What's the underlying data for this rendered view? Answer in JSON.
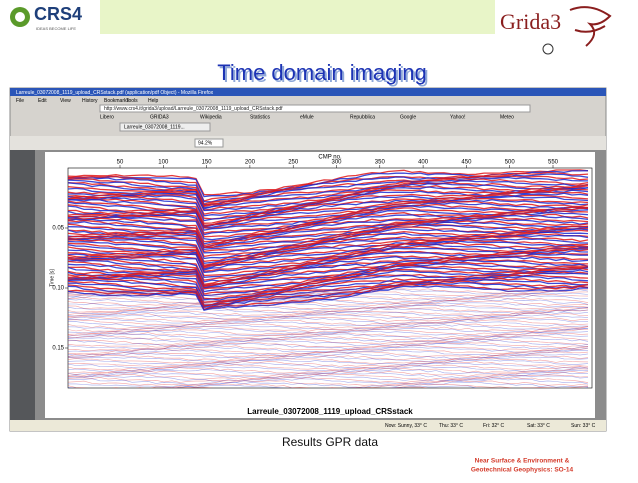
{
  "logo_left": {
    "name": "CRS4",
    "tagline": "IDEAS BECOME LIFE"
  },
  "logo_right": {
    "name": "Grida3"
  },
  "title": "Time domain imaging",
  "browser": {
    "window_title": "Larreule_03072008_1119_upload_CRSstack.pdf (application/pdf Object) - Mozilla Firefox",
    "menu": [
      "File",
      "Edit",
      "View",
      "History",
      "Bookmarks",
      "Tools",
      "Help"
    ],
    "address": "http://www.crs4.it/grida3/upload/Larreule_03072008_1119_upload_CRSstack.pdf",
    "bookmarks": [
      "Libero",
      "GRIDA3",
      "Wikipedia",
      "Statistics",
      "eMule",
      "Repubblica",
      "Google",
      "Yahoo!",
      "Meteo"
    ],
    "tab": "Larreule_03072008_1119...",
    "zoom": "94.2%",
    "taskbar": [
      "Now: Sunny, 33° C",
      "Thu: 33° C",
      "Fri: 32° C",
      "Sat: 33° C",
      "Sun: 33° C"
    ]
  },
  "figure": {
    "x_label": "CMP no.",
    "x_ticks": [
      "50",
      "100",
      "150",
      "200",
      "250",
      "300",
      "350",
      "400",
      "450",
      "500",
      "550"
    ],
    "y_label": "Time [s]",
    "y_ticks": [
      "0.05",
      "0.10",
      "0.15"
    ],
    "caption": "Larreule_03072008_1119_upload_CRSstack"
  },
  "caption": "Results GPR data",
  "footer": [
    "Near Surface & Environment &",
    "Geotechnical Geophysics: SO-14"
  ]
}
